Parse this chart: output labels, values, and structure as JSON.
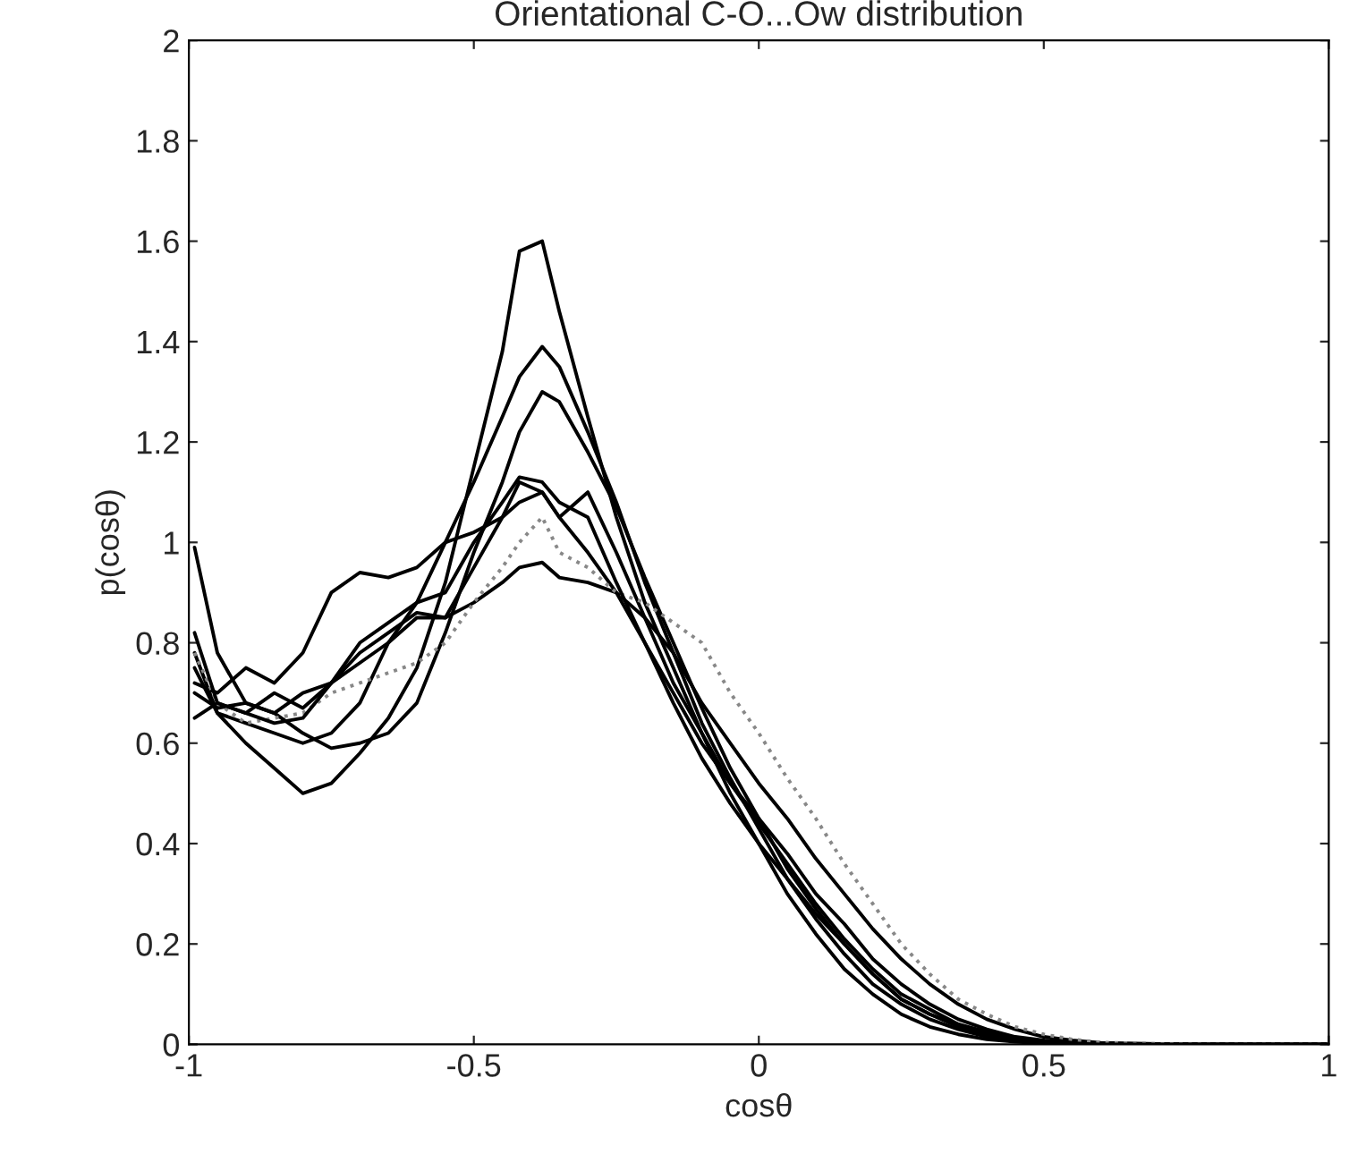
{
  "chart_data": {
    "type": "line",
    "title": "Orientational C-O...Ow distribution",
    "xlabel": "cosθ",
    "ylabel": "p(cosθ)",
    "x": [
      -0.99,
      -0.95,
      -0.9,
      -0.85,
      -0.8,
      -0.75,
      -0.7,
      -0.65,
      -0.6,
      -0.55,
      -0.5,
      -0.45,
      -0.42,
      -0.38,
      -0.35,
      -0.3,
      -0.25,
      -0.2,
      -0.15,
      -0.1,
      -0.05,
      0,
      0.05,
      0.1,
      0.15,
      0.2,
      0.25,
      0.3,
      0.35,
      0.4,
      0.45,
      0.5,
      0.55,
      0.6,
      0.7,
      0.8,
      1.0
    ],
    "series": [
      {
        "color": "#000000",
        "values": [
          0.78,
          0.66,
          0.6,
          0.55,
          0.5,
          0.52,
          0.58,
          0.65,
          0.75,
          0.92,
          1.15,
          1.38,
          1.58,
          1.6,
          1.46,
          1.25,
          1.05,
          0.88,
          0.75,
          0.62,
          0.5,
          0.4,
          0.3,
          0.22,
          0.15,
          0.1,
          0.06,
          0.035,
          0.02,
          0.01,
          0.005,
          0.002,
          0.001,
          0,
          0,
          0,
          0
        ]
      },
      {
        "color": "#000000",
        "values": [
          0.75,
          0.66,
          0.64,
          0.62,
          0.6,
          0.62,
          0.68,
          0.8,
          0.88,
          1.0,
          1.12,
          1.25,
          1.33,
          1.39,
          1.35,
          1.22,
          1.08,
          0.92,
          0.78,
          0.64,
          0.53,
          0.43,
          0.33,
          0.25,
          0.18,
          0.12,
          0.08,
          0.05,
          0.03,
          0.015,
          0.008,
          0.004,
          0.002,
          0,
          0,
          0,
          0
        ]
      },
      {
        "color": "#000000",
        "values": [
          0.7,
          0.67,
          0.68,
          0.66,
          0.62,
          0.59,
          0.6,
          0.62,
          0.68,
          0.82,
          0.98,
          1.12,
          1.22,
          1.3,
          1.28,
          1.18,
          1.07,
          0.93,
          0.8,
          0.67,
          0.55,
          0.45,
          0.35,
          0.27,
          0.2,
          0.14,
          0.09,
          0.06,
          0.04,
          0.02,
          0.01,
          0.005,
          0.002,
          0,
          0,
          0,
          0
        ]
      },
      {
        "color": "#000000",
        "values": [
          0.72,
          0.7,
          0.75,
          0.72,
          0.78,
          0.9,
          0.94,
          0.93,
          0.95,
          1.0,
          1.02,
          1.05,
          1.12,
          1.1,
          1.05,
          0.98,
          0.9,
          0.8,
          0.7,
          0.6,
          0.52,
          0.44,
          0.36,
          0.28,
          0.21,
          0.15,
          0.1,
          0.07,
          0.04,
          0.025,
          0.012,
          0.006,
          0.003,
          0.001,
          0,
          0,
          0
        ]
      },
      {
        "color": "#000000",
        "values": [
          0.99,
          0.78,
          0.68,
          0.66,
          0.7,
          0.72,
          0.76,
          0.8,
          0.85,
          0.85,
          0.95,
          1.05,
          1.08,
          1.1,
          1.05,
          1.1,
          0.98,
          0.85,
          0.72,
          0.62,
          0.52,
          0.45,
          0.38,
          0.3,
          0.24,
          0.17,
          0.12,
          0.08,
          0.05,
          0.03,
          0.015,
          0.008,
          0.004,
          0.001,
          0,
          0,
          0
        ]
      },
      {
        "color": "#000000",
        "values": [
          0.65,
          0.68,
          0.66,
          0.7,
          0.67,
          0.72,
          0.78,
          0.82,
          0.86,
          0.85,
          0.88,
          0.92,
          0.95,
          0.96,
          0.93,
          0.92,
          0.9,
          0.85,
          0.78,
          0.68,
          0.6,
          0.52,
          0.45,
          0.37,
          0.3,
          0.23,
          0.17,
          0.12,
          0.08,
          0.05,
          0.03,
          0.015,
          0.008,
          0.003,
          0.001,
          0,
          0
        ]
      },
      {
        "color": "#888888",
        "line_style": "dotted",
        "values": [
          0.78,
          0.68,
          0.64,
          0.65,
          0.66,
          0.7,
          0.72,
          0.74,
          0.76,
          0.8,
          0.88,
          0.95,
          1.0,
          1.05,
          0.98,
          0.95,
          0.9,
          0.88,
          0.84,
          0.8,
          0.7,
          0.62,
          0.53,
          0.45,
          0.36,
          0.28,
          0.2,
          0.14,
          0.09,
          0.06,
          0.035,
          0.02,
          0.01,
          0.004,
          0.001,
          0,
          0
        ]
      },
      {
        "color": "#000000",
        "values": [
          0.82,
          0.68,
          0.66,
          0.64,
          0.65,
          0.72,
          0.8,
          0.84,
          0.88,
          0.9,
          1.0,
          1.08,
          1.13,
          1.12,
          1.08,
          1.05,
          0.92,
          0.8,
          0.68,
          0.57,
          0.48,
          0.4,
          0.33,
          0.26,
          0.2,
          0.14,
          0.09,
          0.06,
          0.035,
          0.02,
          0.01,
          0.005,
          0.002,
          0,
          0,
          0,
          0
        ]
      }
    ],
    "xlim": [
      -1,
      1
    ],
    "xticks": [
      {
        "value": -1,
        "label": "-1"
      },
      {
        "value": -0.5,
        "label": "-0.5"
      },
      0,
      0.5,
      1
    ],
    "ylim": [
      0,
      2
    ],
    "yticks": [
      0,
      0.2,
      0.4,
      0.6,
      0.8,
      1,
      1.2,
      1.4,
      1.6,
      1.8,
      2
    ],
    "line_style": "solid",
    "grid": false,
    "legend": false
  }
}
